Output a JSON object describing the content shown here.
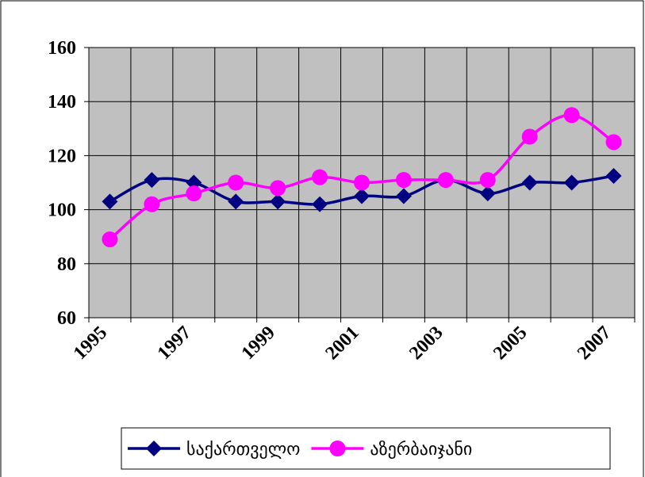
{
  "chart_data": {
    "type": "line",
    "categories": [
      "1995",
      null,
      "1997",
      null,
      "1999",
      null,
      "2001",
      null,
      "2003",
      null,
      "2005",
      null,
      "2007"
    ],
    "series": [
      {
        "name": "საქართველო",
        "color": "#000080",
        "marker": "diamond",
        "values": [
          103,
          111,
          110,
          103,
          103,
          102,
          105,
          105,
          111,
          106,
          110,
          110,
          112.5
        ]
      },
      {
        "name": "აზერბაიჯანი",
        "color": "#ff00ff",
        "marker": "circle",
        "values": [
          89,
          102,
          106,
          110,
          108,
          112,
          110,
          111,
          111,
          111,
          127,
          135,
          125
        ]
      }
    ],
    "ylim": [
      60,
      160
    ],
    "yticks": [
      60,
      80,
      100,
      120,
      140,
      160
    ],
    "grid": true,
    "legend": "bottom"
  }
}
